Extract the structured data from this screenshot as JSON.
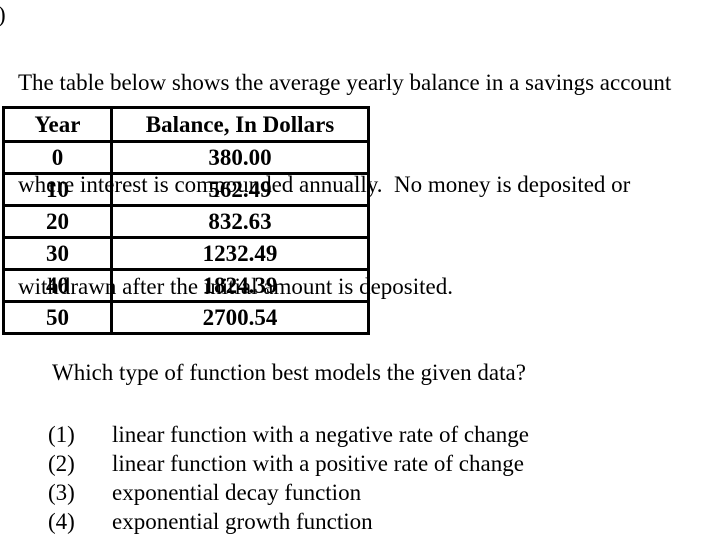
{
  "page": {
    "question_number_suffix": ")",
    "prompt_lines": [
      "The table below shows the average yearly balance in a savings account",
      "where interest is compounded annually.  No money is deposited or",
      "withdrawn after the initial amount is deposited."
    ],
    "question": "Which type of function best models the given data?"
  },
  "table": {
    "headers": [
      "Year",
      "Balance, In Dollars"
    ],
    "rows": [
      [
        "0",
        "380.00"
      ],
      [
        "10",
        "562.49"
      ],
      [
        "20",
        "832.63"
      ],
      [
        "30",
        "1232.49"
      ],
      [
        "40",
        "1824.39"
      ],
      [
        "50",
        "2700.54"
      ]
    ]
  },
  "choices": [
    {
      "number": "(1)",
      "text": "linear function with a negative rate of change"
    },
    {
      "number": "(2)",
      "text": "linear function with a positive rate of change"
    },
    {
      "number": "(3)",
      "text": "exponential decay function"
    },
    {
      "number": "(4)",
      "text": "exponential growth function"
    }
  ],
  "colors": {
    "text": "#000000",
    "background": "#ffffff",
    "table_border": "#000000"
  }
}
